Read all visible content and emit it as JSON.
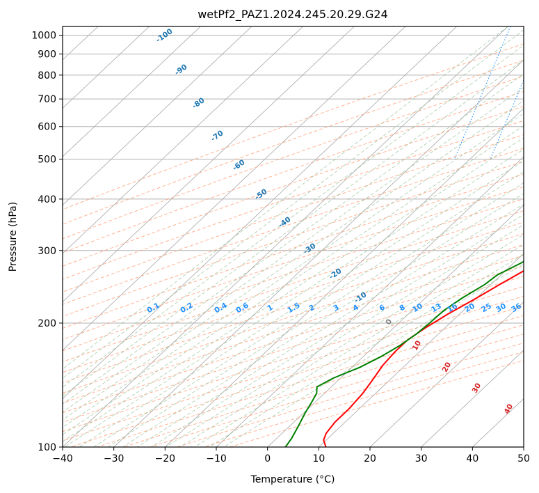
{
  "chart_data": {
    "type": "line",
    "title": "wetPf2_PAZ1.2024.245.20.29.G24",
    "xlabel": "Temperature (°C)",
    "ylabel": "Pressure (hPa)",
    "xlim": [
      -40,
      50
    ],
    "ylim": [
      1050,
      100
    ],
    "y_scale": "log",
    "x_ticks": [
      -40,
      -30,
      -20,
      -10,
      0,
      10,
      20,
      30,
      40,
      50
    ],
    "y_ticks": [
      1000,
      900,
      800,
      700,
      600,
      500,
      400,
      300,
      200,
      100
    ],
    "grid": true,
    "series": [
      {
        "color": "#ff0000",
        "x_axis_position": [
          19.0,
          17.5,
          15.8,
          13.8,
          11.7,
          9.8,
          7.7,
          6.2,
          5.2,
          5.2,
          5.6,
          6.6,
          7.5,
          8.0,
          8.0,
          8.6,
          9.5,
          11.4
        ],
        "pressure": [
          345,
          320,
          295,
          270,
          248,
          228,
          210,
          195,
          182,
          170,
          158,
          146,
          135,
          124,
          115,
          108,
          104,
          100
        ]
      },
      {
        "color": "#008000",
        "x_axis_position": [
          17.0,
          14.5,
          13.2,
          12.8,
          11.5,
          9.3,
          8.8,
          7.2,
          6.2,
          6.0,
          5.7,
          4.8,
          3.5,
          1.5,
          -1.4,
          -2.8,
          -1.5,
          -0.6,
          0.3,
          1.6,
          2.9,
          3.5
        ],
        "pressure": [
          345,
          330,
          315,
          300,
          280,
          262,
          248,
          230,
          215,
          200,
          188,
          176,
          166,
          156,
          147,
          140,
          135,
          128,
          121,
          113,
          105,
          100
        ]
      }
    ],
    "skewed_isotherms_label": "Temperature",
    "dry_adiabat_labels": [
      -100,
      -90,
      -80,
      -70,
      -60,
      -50,
      -40,
      -30,
      -20,
      -10
    ],
    "mixing_ratio_labels": [
      "0.1",
      "0.2",
      "0.4",
      "0.6",
      "1",
      "1.5",
      "2",
      "3",
      "4",
      "6",
      "8",
      "10",
      "13",
      "16",
      "20",
      "25",
      "30",
      "36"
    ],
    "moist_adiabat_labels": [
      0,
      10,
      20,
      30,
      40
    ],
    "colors": {
      "temperature": "#ff0000",
      "dewpoint": "#008000",
      "isotherm": "#b0b0b0",
      "dry_adiabat": "#ffa07a",
      "moist_adiabat": "#8fbc8f",
      "mixing_ratio": "#1e90ff",
      "dry_label": "#1f77b4",
      "moist_label": "#d62728",
      "zero_label": "#808080",
      "isobar_ring": "#d2b48c"
    }
  }
}
